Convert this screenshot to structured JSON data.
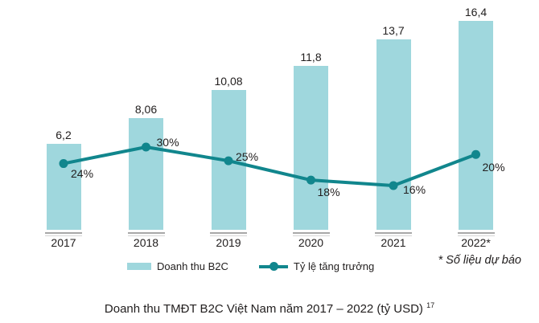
{
  "chart_data": {
    "type": "bar",
    "subtype": "bar-line-combo",
    "categories": [
      "2017",
      "2018",
      "2019",
      "2020",
      "2021",
      "2022*"
    ],
    "series": [
      {
        "name": "Doanh thu B2C",
        "type": "bar",
        "values": [
          6.2,
          8.06,
          10.08,
          11.8,
          13.7,
          16.4
        ],
        "value_labels": [
          "6,2",
          "8,06",
          "10,08",
          "11,8",
          "13,7",
          "16,4"
        ],
        "unit": "tỷ USD",
        "color": "#9fd7dd"
      },
      {
        "name": "Tỷ lệ tăng trưởng",
        "type": "line",
        "values": [
          24,
          30,
          25,
          18,
          16,
          20
        ],
        "value_labels": [
          "24%",
          "30%",
          "25%",
          "18%",
          "16%",
          "20%"
        ],
        "unit": "%",
        "color": "#11868d"
      }
    ],
    "title": "Doanh thu TMĐT B2C Việt Nam năm 2017 – 2022 (tỷ USD)",
    "title_superscript": "17",
    "note": "* Số liệu dự báo",
    "legend_position": "bottom",
    "grid": false,
    "axes_visible": false
  },
  "legend": {
    "bar_label": "Doanh thu B2C",
    "line_label": "Tỷ lệ tăng trưởng"
  },
  "note": {
    "text": "* Số liệu dự báo"
  },
  "caption": {
    "text": "Doanh thu TMĐT B2C Việt Nam năm 2017 – 2022 (tỷ USD) ",
    "superscript": "17"
  },
  "colors": {
    "bar": "#9fd7dd",
    "line": "#11868d",
    "text": "#232020",
    "tick": "#a8a8a8"
  }
}
